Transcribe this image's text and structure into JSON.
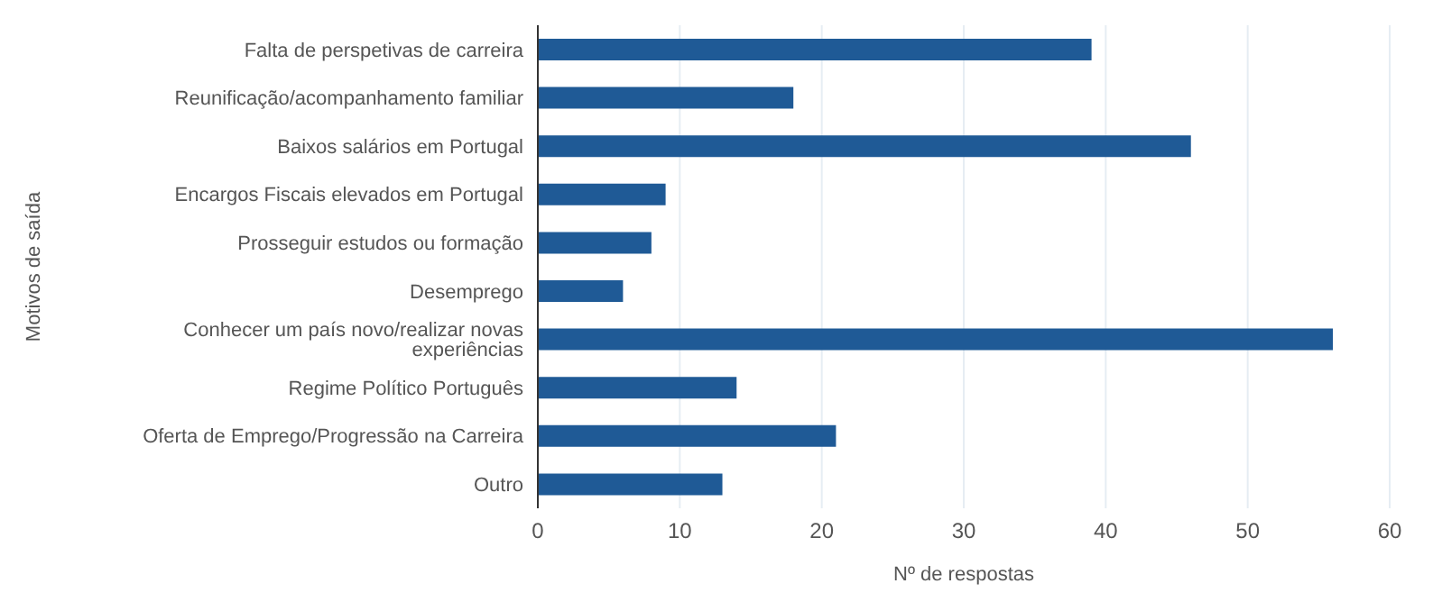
{
  "chart_data": {
    "type": "bar",
    "orientation": "horizontal",
    "xlabel": "Nº de respostas",
    "ylabel": "Motivos de saída",
    "categories": [
      "Falta de perspetivas de carreira",
      "Reunificação/acompanhamento familiar",
      "Baixos salários em Portugal",
      "Encargos Fiscais elevados em Portugal",
      "Prosseguir estudos ou formação",
      "Desemprego",
      "Conhecer um país novo/realizar novas experiências",
      "Regime Político Português",
      "Oferta de Emprego/Progressão na Carreira",
      "Outro"
    ],
    "values": [
      39,
      18,
      46,
      9,
      8,
      6,
      56,
      14,
      21,
      13
    ],
    "color": "#1f5a96",
    "xlim": [
      0,
      60
    ],
    "xticks": [
      0,
      10,
      20,
      30,
      40,
      50,
      60
    ],
    "grid": "x"
  }
}
